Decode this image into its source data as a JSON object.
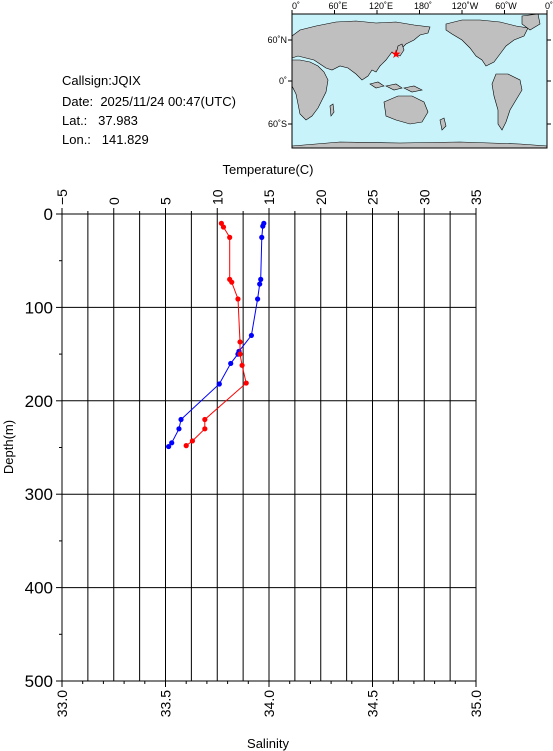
{
  "station": {
    "callsign_label": "Callsign:",
    "callsign": "JQIX",
    "date_label": "Date:",
    "date": "2025/11/24 00:47(UTC)",
    "lat_label": "Lat.:",
    "lat": "37.983",
    "lon_label": "Lon.:",
    "lon": "141.829"
  },
  "map": {
    "lon_ticks": [
      "0˚",
      "60˚E",
      "120˚E",
      "180˚",
      "120˚W",
      "60˚W",
      "0˚"
    ],
    "lat_ticks": [
      "60˚N",
      "0˚",
      "60˚S"
    ],
    "ocean_color": "#c9f3fa",
    "land_color": "#bfbfbf",
    "marker_color": "#ff0000",
    "marker_icon": "star-icon"
  },
  "chart_data": {
    "type": "line",
    "title": "",
    "ylabel": "Depth(m)",
    "y_inverted": true,
    "ylim": [
      0,
      500
    ],
    "y_ticks": [
      "0",
      "100",
      "200",
      "300",
      "400",
      "500"
    ],
    "x_top": {
      "label": "Temperature(C)",
      "lim": [
        -5,
        35
      ],
      "ticks": [
        "−5",
        "0",
        "5",
        "10",
        "15",
        "20",
        "25",
        "30",
        "35"
      ]
    },
    "x_bottom": {
      "label": "Salinity",
      "lim": [
        33.0,
        35.0
      ],
      "ticks": [
        "33.0",
        "33.5",
        "34.0",
        "34.5",
        "35.0"
      ]
    },
    "grid": true,
    "series": [
      {
        "color": "#0000ff",
        "axis": "temperature",
        "points": [
          {
            "x": 14.5,
            "y": 10
          },
          {
            "x": 14.4,
            "y": 13
          },
          {
            "x": 14.3,
            "y": 25
          },
          {
            "x": 14.2,
            "y": 70
          },
          {
            "x": 14.1,
            "y": 75
          },
          {
            "x": 13.9,
            "y": 91
          },
          {
            "x": 13.3,
            "y": 130
          },
          {
            "x": 12.1,
            "y": 147
          },
          {
            "x": 12.0,
            "y": 150
          },
          {
            "x": 11.3,
            "y": 160
          },
          {
            "x": 10.2,
            "y": 182
          },
          {
            "x": 6.5,
            "y": 220
          },
          {
            "x": 6.3,
            "y": 230
          },
          {
            "x": 5.6,
            "y": 245
          },
          {
            "x": 5.3,
            "y": 249
          }
        ]
      },
      {
        "color": "#ff0000",
        "axis": "salinity",
        "points": [
          {
            "x": 33.77,
            "y": 10
          },
          {
            "x": 33.78,
            "y": 14
          },
          {
            "x": 33.81,
            "y": 25
          },
          {
            "x": 33.81,
            "y": 70
          },
          {
            "x": 33.82,
            "y": 73
          },
          {
            "x": 33.85,
            "y": 91
          },
          {
            "x": 33.86,
            "y": 137
          },
          {
            "x": 33.86,
            "y": 150
          },
          {
            "x": 33.87,
            "y": 162
          },
          {
            "x": 33.89,
            "y": 181
          },
          {
            "x": 33.69,
            "y": 220
          },
          {
            "x": 33.69,
            "y": 230
          },
          {
            "x": 33.63,
            "y": 243
          },
          {
            "x": 33.6,
            "y": 248
          }
        ]
      }
    ]
  }
}
